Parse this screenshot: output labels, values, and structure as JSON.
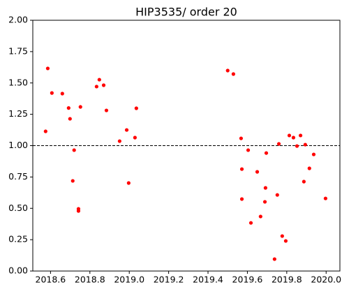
{
  "chart_data": {
    "type": "scatter",
    "title": "HIP3535/ order 20",
    "series": [
      {
        "color": "#ff0000",
        "x": [
          2018.575,
          2018.586,
          2018.607,
          2018.66,
          2018.692,
          2018.699,
          2018.713,
          2018.72,
          2018.742,
          2018.742,
          2018.752,
          2018.834,
          2018.848,
          2018.87,
          2018.884,
          2018.951,
          2018.987,
          2018.997,
          2019.029,
          2019.036,
          2019.5,
          2019.529,
          2019.568,
          2019.572,
          2019.572,
          2019.604,
          2019.618,
          2019.65,
          2019.667,
          2019.689,
          2019.692,
          2019.696,
          2019.738,
          2019.752,
          2019.76,
          2019.777,
          2019.795,
          2019.813,
          2019.834,
          2019.852,
          2019.87,
          2019.887,
          2019.894,
          2019.915,
          2019.937,
          2019.997
        ],
        "values": [
          1.114,
          1.616,
          1.42,
          1.415,
          1.3,
          1.214,
          0.719,
          0.964,
          0.496,
          0.479,
          1.309,
          1.471,
          1.526,
          1.482,
          1.281,
          1.036,
          1.125,
          0.702,
          1.064,
          1.298,
          1.599,
          1.571,
          1.058,
          0.813,
          0.574,
          0.964,
          0.384,
          0.791,
          0.435,
          0.552,
          0.663,
          0.941,
          0.095,
          0.607,
          1.014,
          0.279,
          0.24,
          1.081,
          1.064,
          0.997,
          1.081,
          0.713,
          1.008,
          0.819,
          0.93,
          0.579
        ]
      }
    ],
    "reference_line": 1,
    "xlim": [
      2018.51,
      2020.07
    ],
    "xticks": [
      2018.6,
      2018.8,
      {
        "value": 2019,
        "label": "2019.0"
      },
      2019.2,
      2019.4,
      2019.6,
      2019.8,
      {
        "value": 2020,
        "label": "2020.0"
      }
    ],
    "ylim": [
      0,
      2
    ],
    "yticks": [
      {
        "value": 0,
        "label": "0.00"
      },
      {
        "value": 0.25,
        "label": "0.25"
      },
      {
        "value": 0.5,
        "label": "0.50"
      },
      {
        "value": 0.75,
        "label": "0.75"
      },
      {
        "value": 1,
        "label": "1.00"
      },
      {
        "value": 1.25,
        "label": "1.25"
      },
      {
        "value": 1.5,
        "label": "1.50"
      },
      {
        "value": 1.75,
        "label": "1.75"
      },
      {
        "value": 2,
        "label": "2.00"
      }
    ]
  }
}
